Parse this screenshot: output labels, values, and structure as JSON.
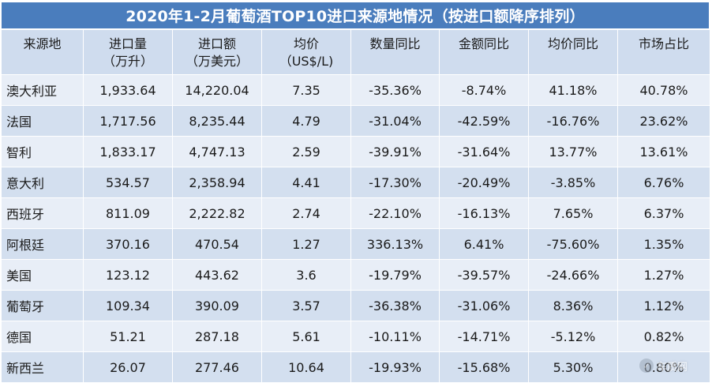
{
  "title": "2020年1-2月葡萄酒TOP10进口来源地情况（按进口额降序排列）",
  "table": {
    "headers": [
      [
        "来源地",
        ""
      ],
      [
        "进口量",
        "（万升）"
      ],
      [
        "进口额",
        "（万美元）"
      ],
      [
        "均价",
        "（US$/L)"
      ],
      [
        "数量同比",
        ""
      ],
      [
        "金额同比",
        ""
      ],
      [
        "均价同比",
        ""
      ],
      [
        "市场占比",
        ""
      ]
    ],
    "rows": [
      [
        "澳大利亚",
        "1,933.64",
        "14,220.04",
        "7.35",
        "-35.36%",
        "-8.74%",
        "41.18%",
        "40.78%"
      ],
      [
        "法国",
        "1,717.56",
        "8,235.44",
        "4.79",
        "-31.04%",
        "-42.59%",
        "-16.76%",
        "23.62%"
      ],
      [
        "智利",
        "1,833.17",
        "4,747.13",
        "2.59",
        "-39.91%",
        "-31.64%",
        "13.77%",
        "13.61%"
      ],
      [
        "意大利",
        "534.57",
        "2,358.94",
        "4.41",
        "-17.30%",
        "-20.49%",
        "-3.85%",
        "6.76%"
      ],
      [
        "西班牙",
        "811.09",
        "2,222.82",
        "2.74",
        "-22.10%",
        "-16.13%",
        "7.65%",
        "6.37%"
      ],
      [
        "阿根廷",
        "370.16",
        "470.54",
        "1.27",
        "336.13%",
        "6.41%",
        "-75.60%",
        "1.35%"
      ],
      [
        "美国",
        "123.12",
        "443.62",
        "3.6",
        "-19.79%",
        "-39.57%",
        "-24.66%",
        "1.27%"
      ],
      [
        "葡萄牙",
        "109.34",
        "390.09",
        "3.57",
        "-36.38%",
        "-31.06%",
        "8.36%",
        "1.12%"
      ],
      [
        "德国",
        "51.21",
        "287.18",
        "5.61",
        "-10.11%",
        "-14.71%",
        "-5.12%",
        "0.82%"
      ],
      [
        "新西兰",
        "26.07",
        "277.46",
        "10.64",
        "-19.93%",
        "-15.68%",
        "5.30%",
        "0.80%"
      ]
    ]
  },
  "watermark": {
    "icon": "site-logo-icon",
    "text": "车质网"
  },
  "colors": {
    "title_bg": "#4a7dbd",
    "header_bg": "#cfdcee",
    "row_odd": "#e8eef7",
    "row_even": "#d3dfef"
  }
}
